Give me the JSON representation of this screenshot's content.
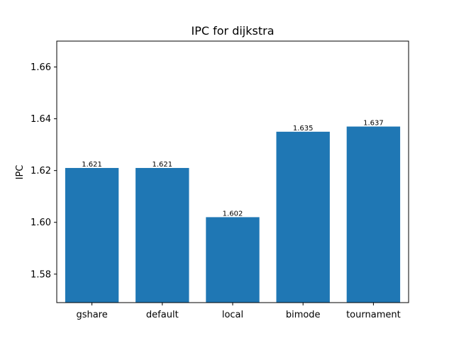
{
  "chart_data": {
    "type": "bar",
    "title": "IPC for dijkstra",
    "xlabel": "",
    "ylabel": "IPC",
    "categories": [
      "gshare",
      "default",
      "local",
      "bimode",
      "tournament"
    ],
    "values": [
      1.621,
      1.621,
      1.602,
      1.635,
      1.637
    ],
    "data_labels": [
      "1.621",
      "1.621",
      "1.602",
      "1.635",
      "1.637"
    ],
    "ylim": [
      1.569,
      1.67
    ],
    "yticks": [
      1.58,
      1.6,
      1.62,
      1.64,
      1.66
    ],
    "ytick_labels": [
      "1.58",
      "1.60",
      "1.62",
      "1.64",
      "1.66"
    ],
    "grid": false,
    "legend": "none",
    "colors": {
      "bar": "#1f77b4",
      "axes": "#000000",
      "background": "#ffffff"
    }
  }
}
